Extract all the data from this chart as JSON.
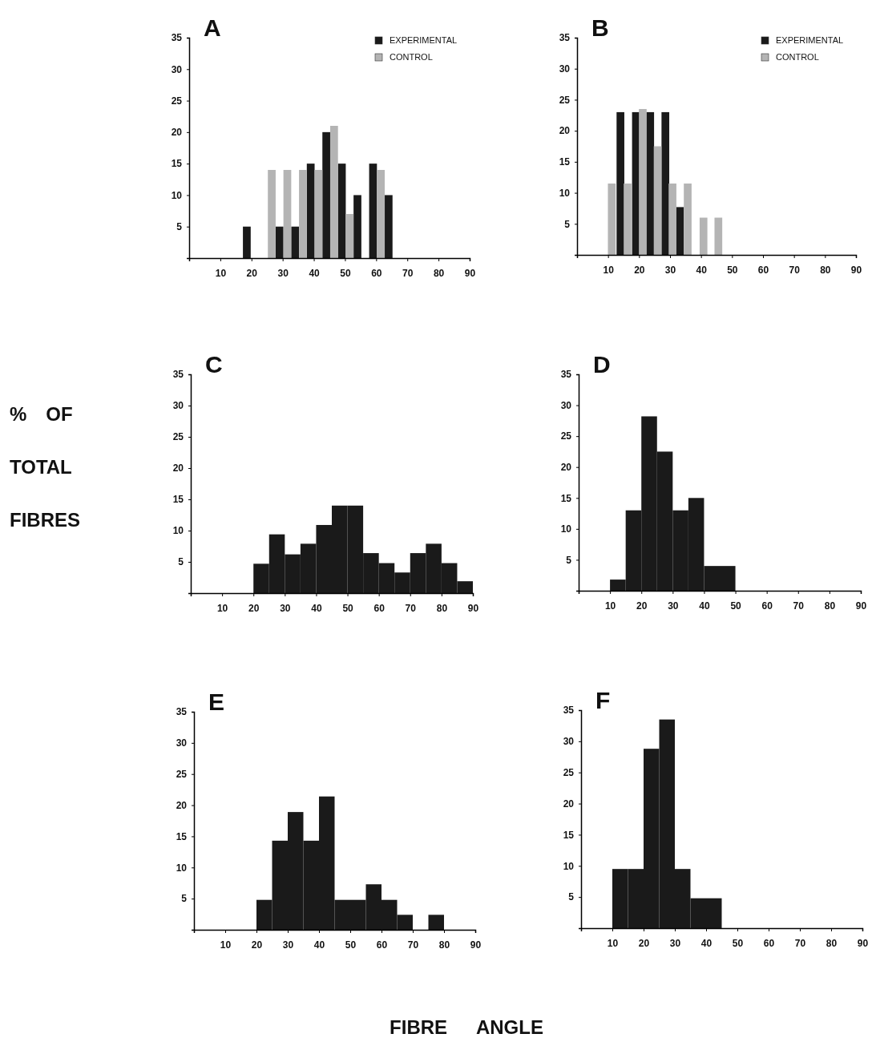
{
  "chart_data": [
    {
      "type": "bar",
      "title": "A",
      "xlim": [
        0,
        90
      ],
      "xticks": [
        10,
        20,
        30,
        40,
        50,
        60,
        70,
        80,
        90
      ],
      "ylim": [
        0,
        35
      ],
      "yticks": [
        5,
        10,
        15,
        20,
        25,
        30,
        35
      ],
      "legend": "top right",
      "series": [
        {
          "name": "EXPERIMENTAL",
          "color": "#1a1a1a",
          "x": [
            18.5,
            29,
            34,
            39,
            44,
            49,
            54,
            59,
            64
          ],
          "values": [
            5,
            5,
            5,
            15,
            20,
            15,
            10,
            15,
            10
          ]
        },
        {
          "name": "CONTROL",
          "color": "#b4b4b4",
          "x": [
            26.5,
            31.5,
            36.5,
            41.5,
            46.5,
            51.5,
            61.5
          ],
          "values": [
            14,
            14,
            14,
            14,
            21,
            7,
            14
          ]
        }
      ]
    },
    {
      "type": "bar",
      "title": "B",
      "xlim": [
        0,
        90
      ],
      "xticks": [
        10,
        20,
        30,
        40,
        50,
        60,
        70,
        80,
        90
      ],
      "ylim": [
        0,
        35
      ],
      "yticks": [
        5,
        10,
        15,
        20,
        25,
        30,
        35
      ],
      "legend": "top right",
      "series": [
        {
          "name": "EXPERIMENTAL",
          "color": "#1a1a1a",
          "x": [
            14,
            19,
            23.6,
            28.5,
            33.2
          ],
          "values": [
            23,
            23,
            23,
            23,
            7.7
          ]
        },
        {
          "name": "CONTROL",
          "color": "#b4b4b4",
          "x": [
            11.2,
            16.3,
            21.2,
            26,
            30.8,
            35.7,
            40.8,
            45.6
          ],
          "values": [
            11.5,
            11.5,
            23.5,
            17.5,
            11.5,
            11.5,
            6,
            6
          ]
        }
      ]
    },
    {
      "type": "histogram",
      "title": "C",
      "ylabel": "% OF TOTAL FIBRES",
      "xlim": [
        0,
        90
      ],
      "xticks": [
        10,
        20,
        30,
        40,
        50,
        60,
        70,
        80,
        90
      ],
      "ylim": [
        0,
        35
      ],
      "yticks": [
        5,
        10,
        15,
        20,
        25,
        30,
        35
      ],
      "color": "#1a1a1a",
      "bins": [
        20,
        25,
        30,
        35,
        40,
        45,
        50,
        55,
        60,
        65,
        70,
        75,
        80,
        85,
        90
      ],
      "values": [
        4.7,
        9.4,
        6.2,
        7.9,
        10.9,
        14,
        14,
        6.4,
        4.8,
        3.3,
        6.4,
        7.9,
        4.8,
        1.9
      ]
    },
    {
      "type": "histogram",
      "title": "D",
      "xlim": [
        0,
        90
      ],
      "xticks": [
        10,
        20,
        30,
        40,
        50,
        60,
        70,
        80,
        90
      ],
      "ylim": [
        0,
        35
      ],
      "yticks": [
        5,
        10,
        15,
        20,
        25,
        30,
        35
      ],
      "color": "#1a1a1a",
      "bins": [
        10,
        15,
        20,
        25,
        30,
        35,
        40,
        45,
        50
      ],
      "values": [
        1.8,
        13,
        28.2,
        22.5,
        13,
        15,
        4,
        4
      ]
    },
    {
      "type": "histogram",
      "title": "E",
      "xlabel": "FIBRE ANGLE",
      "xlim": [
        0,
        90
      ],
      "xticks": [
        10,
        20,
        30,
        40,
        50,
        60,
        70,
        80,
        90
      ],
      "ylim": [
        0,
        35
      ],
      "yticks": [
        5,
        10,
        15,
        20,
        25,
        30,
        35
      ],
      "color": "#1a1a1a",
      "bins": [
        20,
        25,
        30,
        35,
        40,
        45,
        50,
        55,
        60,
        65,
        70,
        75,
        80
      ],
      "values": [
        4.8,
        14.3,
        18.9,
        14.3,
        21.4,
        4.8,
        4.8,
        7.3,
        4.8,
        2.4,
        0,
        2.4
      ]
    },
    {
      "type": "histogram",
      "title": "F",
      "xlim": [
        0,
        90
      ],
      "xticks": [
        10,
        20,
        30,
        40,
        50,
        60,
        70,
        80,
        90
      ],
      "ylim": [
        0,
        35
      ],
      "yticks": [
        5,
        10,
        15,
        20,
        25,
        30,
        35
      ],
      "color": "#1a1a1a",
      "bins": [
        10,
        15,
        20,
        25,
        30,
        35,
        40,
        45
      ],
      "values": [
        9.5,
        9.5,
        28.8,
        33.5,
        9.5,
        4.8,
        4.8
      ]
    }
  ]
}
